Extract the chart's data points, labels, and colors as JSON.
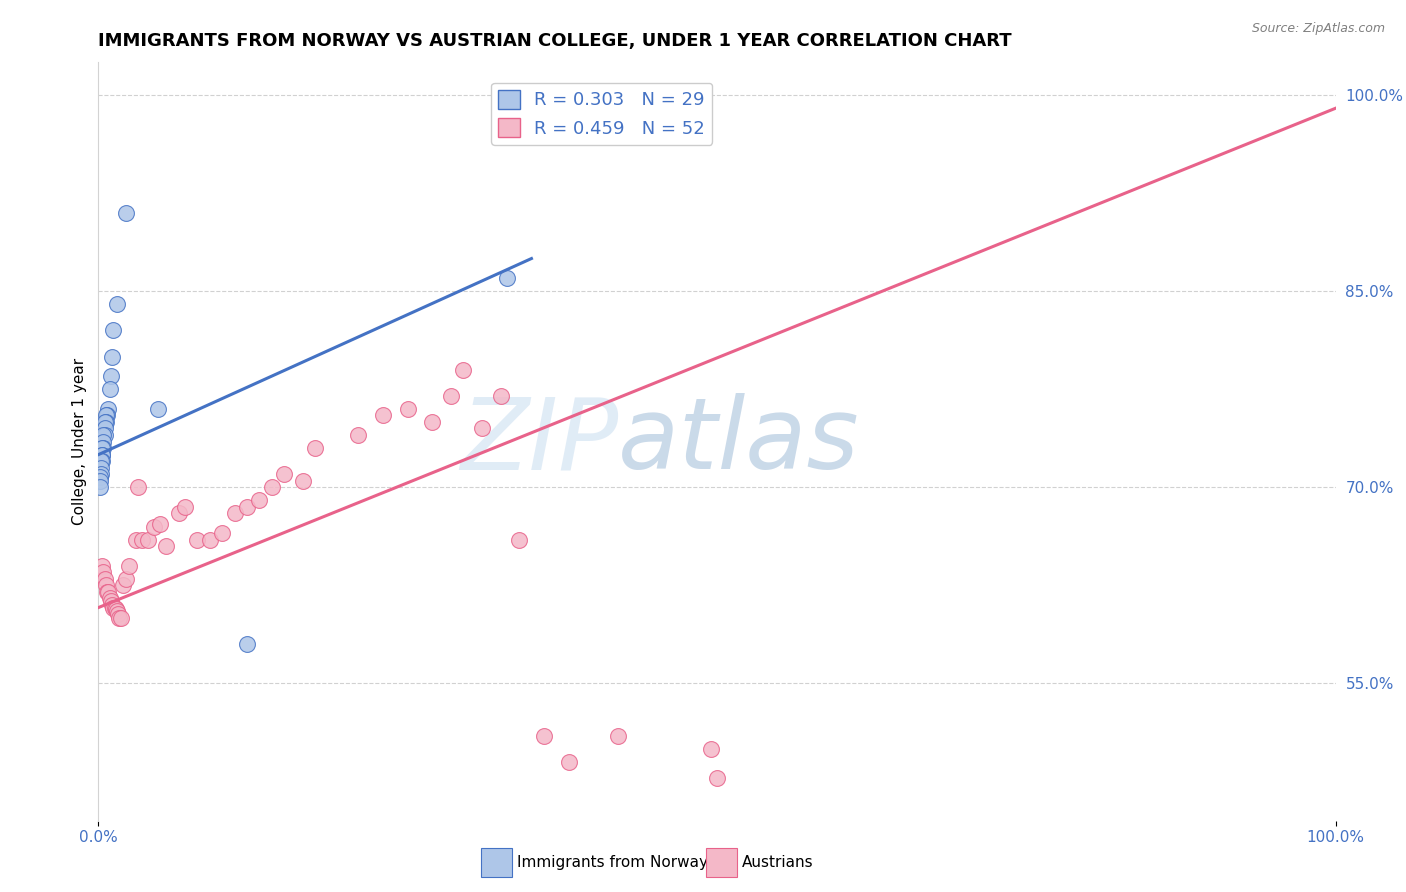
{
  "title": "IMMIGRANTS FROM NORWAY VS AUSTRIAN COLLEGE, UNDER 1 YEAR CORRELATION CHART",
  "source_text": "Source: ZipAtlas.com",
  "ylabel": "College, Under 1 year",
  "xmin": 0.0,
  "xmax": 1.0,
  "ymin": 0.445,
  "ymax": 1.025,
  "yticks": [
    0.55,
    0.7,
    0.85,
    1.0
  ],
  "ytick_labels": [
    "55.0%",
    "70.0%",
    "85.0%",
    "100.0%"
  ],
  "legend_r_norway": "R = 0.303",
  "legend_n_norway": "N = 29",
  "legend_r_austrians": "R = 0.459",
  "legend_n_austrians": "N = 52",
  "norway_color": "#aec6e8",
  "austrians_color": "#f4b8c8",
  "norway_line_color": "#4472c4",
  "austrians_line_color": "#e8628a",
  "background_color": "#ffffff",
  "grid_color": "#cccccc",
  "norway_scatter_x": [
    0.022,
    0.015,
    0.012,
    0.011,
    0.01,
    0.009,
    0.008,
    0.007,
    0.006,
    0.006,
    0.005,
    0.005,
    0.005,
    0.004,
    0.004,
    0.004,
    0.003,
    0.003,
    0.003,
    0.003,
    0.002,
    0.002,
    0.002,
    0.001,
    0.001,
    0.001,
    0.048,
    0.12,
    0.33
  ],
  "norway_scatter_y": [
    0.91,
    0.84,
    0.82,
    0.8,
    0.785,
    0.775,
    0.76,
    0.755,
    0.755,
    0.75,
    0.75,
    0.745,
    0.74,
    0.74,
    0.735,
    0.73,
    0.73,
    0.725,
    0.725,
    0.72,
    0.72,
    0.715,
    0.71,
    0.708,
    0.705,
    0.7,
    0.76,
    0.58,
    0.86
  ],
  "austrians_scatter_x": [
    0.003,
    0.004,
    0.005,
    0.006,
    0.007,
    0.008,
    0.009,
    0.01,
    0.011,
    0.012,
    0.013,
    0.014,
    0.015,
    0.016,
    0.017,
    0.018,
    0.02,
    0.022,
    0.025,
    0.03,
    0.032,
    0.035,
    0.04,
    0.045,
    0.05,
    0.055,
    0.065,
    0.07,
    0.08,
    0.09,
    0.1,
    0.11,
    0.12,
    0.13,
    0.14,
    0.15,
    0.165,
    0.175,
    0.21,
    0.23,
    0.25,
    0.27,
    0.285,
    0.295,
    0.31,
    0.325,
    0.34,
    0.36,
    0.38,
    0.42,
    0.495,
    0.5
  ],
  "austrians_scatter_y": [
    0.64,
    0.635,
    0.63,
    0.625,
    0.62,
    0.62,
    0.615,
    0.613,
    0.61,
    0.608,
    0.608,
    0.607,
    0.605,
    0.603,
    0.6,
    0.6,
    0.625,
    0.63,
    0.64,
    0.66,
    0.7,
    0.66,
    0.66,
    0.67,
    0.672,
    0.655,
    0.68,
    0.685,
    0.66,
    0.66,
    0.665,
    0.68,
    0.685,
    0.69,
    0.7,
    0.71,
    0.705,
    0.73,
    0.74,
    0.755,
    0.76,
    0.75,
    0.77,
    0.79,
    0.745,
    0.77,
    0.66,
    0.51,
    0.49,
    0.51,
    0.5,
    0.478
  ],
  "norway_line_x": [
    0.0,
    0.35
  ],
  "norway_line_y": [
    0.725,
    0.875
  ],
  "austrians_line_x": [
    0.0,
    1.0
  ],
  "austrians_line_y": [
    0.608,
    0.99
  ],
  "title_fontsize": 13,
  "axis_label_fontsize": 11,
  "tick_fontsize": 11,
  "legend_fontsize": 13,
  "watermark_zip_color": "#c8d8ee",
  "watermark_atlas_color": "#aabbd8"
}
